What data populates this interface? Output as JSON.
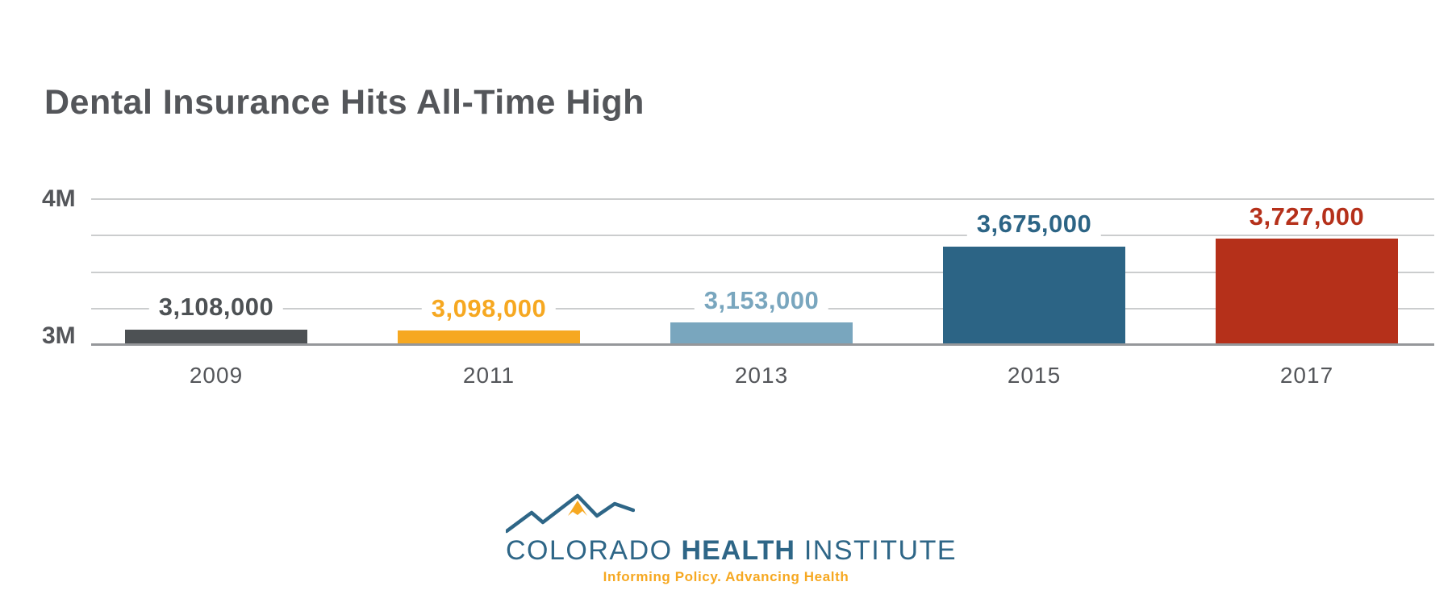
{
  "title": "Dental Insurance Hits All-Time High",
  "chart_data": {
    "type": "bar",
    "categories": [
      "2009",
      "2011",
      "2013",
      "2015",
      "2017"
    ],
    "values": [
      3108000,
      3098000,
      3153000,
      3675000,
      3727000
    ],
    "value_labels": [
      "3,108,000",
      "3,098,000",
      "3,153,000",
      "3,675,000",
      "3,727,000"
    ],
    "bar_colors": [
      "#4D5154",
      "#F6A821",
      "#79A6BE",
      "#2C6485",
      "#B5301A"
    ],
    "title": "Dental Insurance Hits All-Time High",
    "xlabel": "",
    "ylabel": "",
    "ylim": [
      3000000,
      4000000
    ],
    "yticks": [
      {
        "value": 4000000,
        "label": "4M"
      },
      {
        "value": 3000000,
        "label": "3M"
      }
    ],
    "gridline_interval": 250000,
    "grid": "horizontal",
    "legend": "none"
  },
  "axis": {
    "top_tick_label": "4M",
    "bottom_tick_label": "3M"
  },
  "colors": {
    "title_text": "#54565A",
    "axis_text": "#54565A",
    "gridline": "#CBCDCE",
    "baseline": "#95979A",
    "background": "#FFFFFF"
  },
  "logo": {
    "word1": "COLORADO",
    "word2": "HEALTH",
    "word3": "INSTITUTE",
    "tagline": "Informing Policy. Advancing Health",
    "blue": "#2E6687",
    "gold": "#F6A821",
    "mountain_icon": "mountain-zigzag-with-gold-peak"
  }
}
